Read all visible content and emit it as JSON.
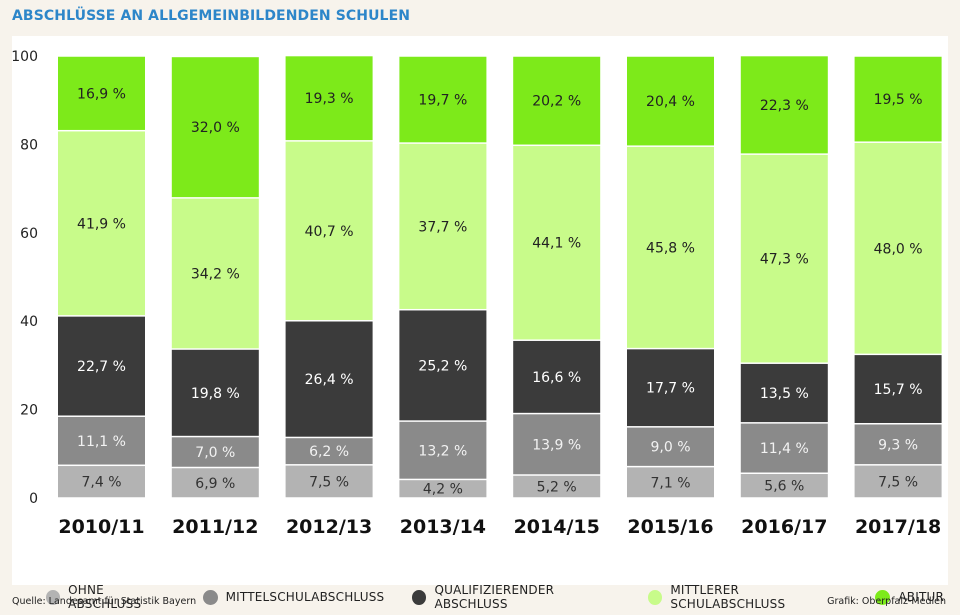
{
  "title": "ABSCHLÜSSE AN ALLGEMEINBILDENDEN SCHULEN",
  "colors": {
    "ohne": "#b3b3b3",
    "mittelschul": "#8a8a8a",
    "quali": "#3b3b3b",
    "mittlerer": "#c8fb8a",
    "abitur": "#7dea1a"
  },
  "chart_data": {
    "type": "bar",
    "stacked": true,
    "categories": [
      "2010/11",
      "2011/12",
      "2012/13",
      "2013/14",
      "2014/15",
      "2015/16",
      "2016/17",
      "2017/18"
    ],
    "ylim": [
      0,
      100
    ],
    "yticks": [
      "0",
      "20",
      "40",
      "60",
      "80",
      "100"
    ],
    "grid": false,
    "legend_position": "bottom",
    "series": [
      {
        "name": "OHNE ABSCHLUSS",
        "values": [
          7.4,
          6.9,
          7.5,
          4.2,
          5.2,
          7.1,
          5.6,
          7.5
        ],
        "labels": [
          "7,4 %",
          "6,9 %",
          "7,5 %",
          "4,2 %",
          "5,2 %",
          "7,1 %",
          "5,6 %",
          "7,5 %"
        ]
      },
      {
        "name": "MITTELSCHULABSCHLUSS",
        "values": [
          11.1,
          7.0,
          6.2,
          13.2,
          13.9,
          9.0,
          11.4,
          9.3
        ],
        "labels": [
          "11,1 %",
          "7,0 %",
          "6,2 %",
          "13,2 %",
          "13,9 %",
          "9,0 %",
          "11,4 %",
          "9,3 %"
        ]
      },
      {
        "name": "QUALIFIZIERENDER ABSCHLUSS",
        "values": [
          22.7,
          19.8,
          26.4,
          25.2,
          16.6,
          17.7,
          13.5,
          15.7
        ],
        "labels": [
          "22,7 %",
          "19,8 %",
          "26,4 %",
          "25,2 %",
          "16,6 %",
          "17,7 %",
          "13,5 %",
          "15,7 %"
        ]
      },
      {
        "name": "MITTLERER SCHULABSCHLUSS",
        "values": [
          41.9,
          34.2,
          40.7,
          37.7,
          44.1,
          45.8,
          47.3,
          48.0
        ],
        "labels": [
          "41,9 %",
          "34,2 %",
          "40,7 %",
          "37,7 %",
          "44,1 %",
          "45,8 %",
          "47,3 %",
          "48,0 %"
        ]
      },
      {
        "name": "ABITUR",
        "values": [
          16.9,
          32.0,
          19.3,
          19.7,
          20.2,
          20.4,
          22.3,
          19.5
        ],
        "labels": [
          "16,9 %",
          "32,0 %",
          "19,3 %",
          "19,7 %",
          "20,2 %",
          "20,4 %",
          "22,3 %",
          "19,5 %"
        ]
      }
    ]
  },
  "legend": [
    {
      "label": "OHNE ABSCHLUSS",
      "color": "#b3b3b3"
    },
    {
      "label": "MITTELSCHULABSCHLUSS",
      "color": "#8a8a8a"
    },
    {
      "label": "QUALIFIZIERENDER ABSCHLUSS",
      "color": "#3b3b3b"
    },
    {
      "label": "MITTLERER SCHULABSCHLUSS",
      "color": "#c8fb8a"
    },
    {
      "label": "ABITUR",
      "color": "#7dea1a"
    }
  ],
  "source": "Quelle: Landesamt für Statistik Bayern",
  "credit": "Grafik: Oberpfalz-Medien"
}
